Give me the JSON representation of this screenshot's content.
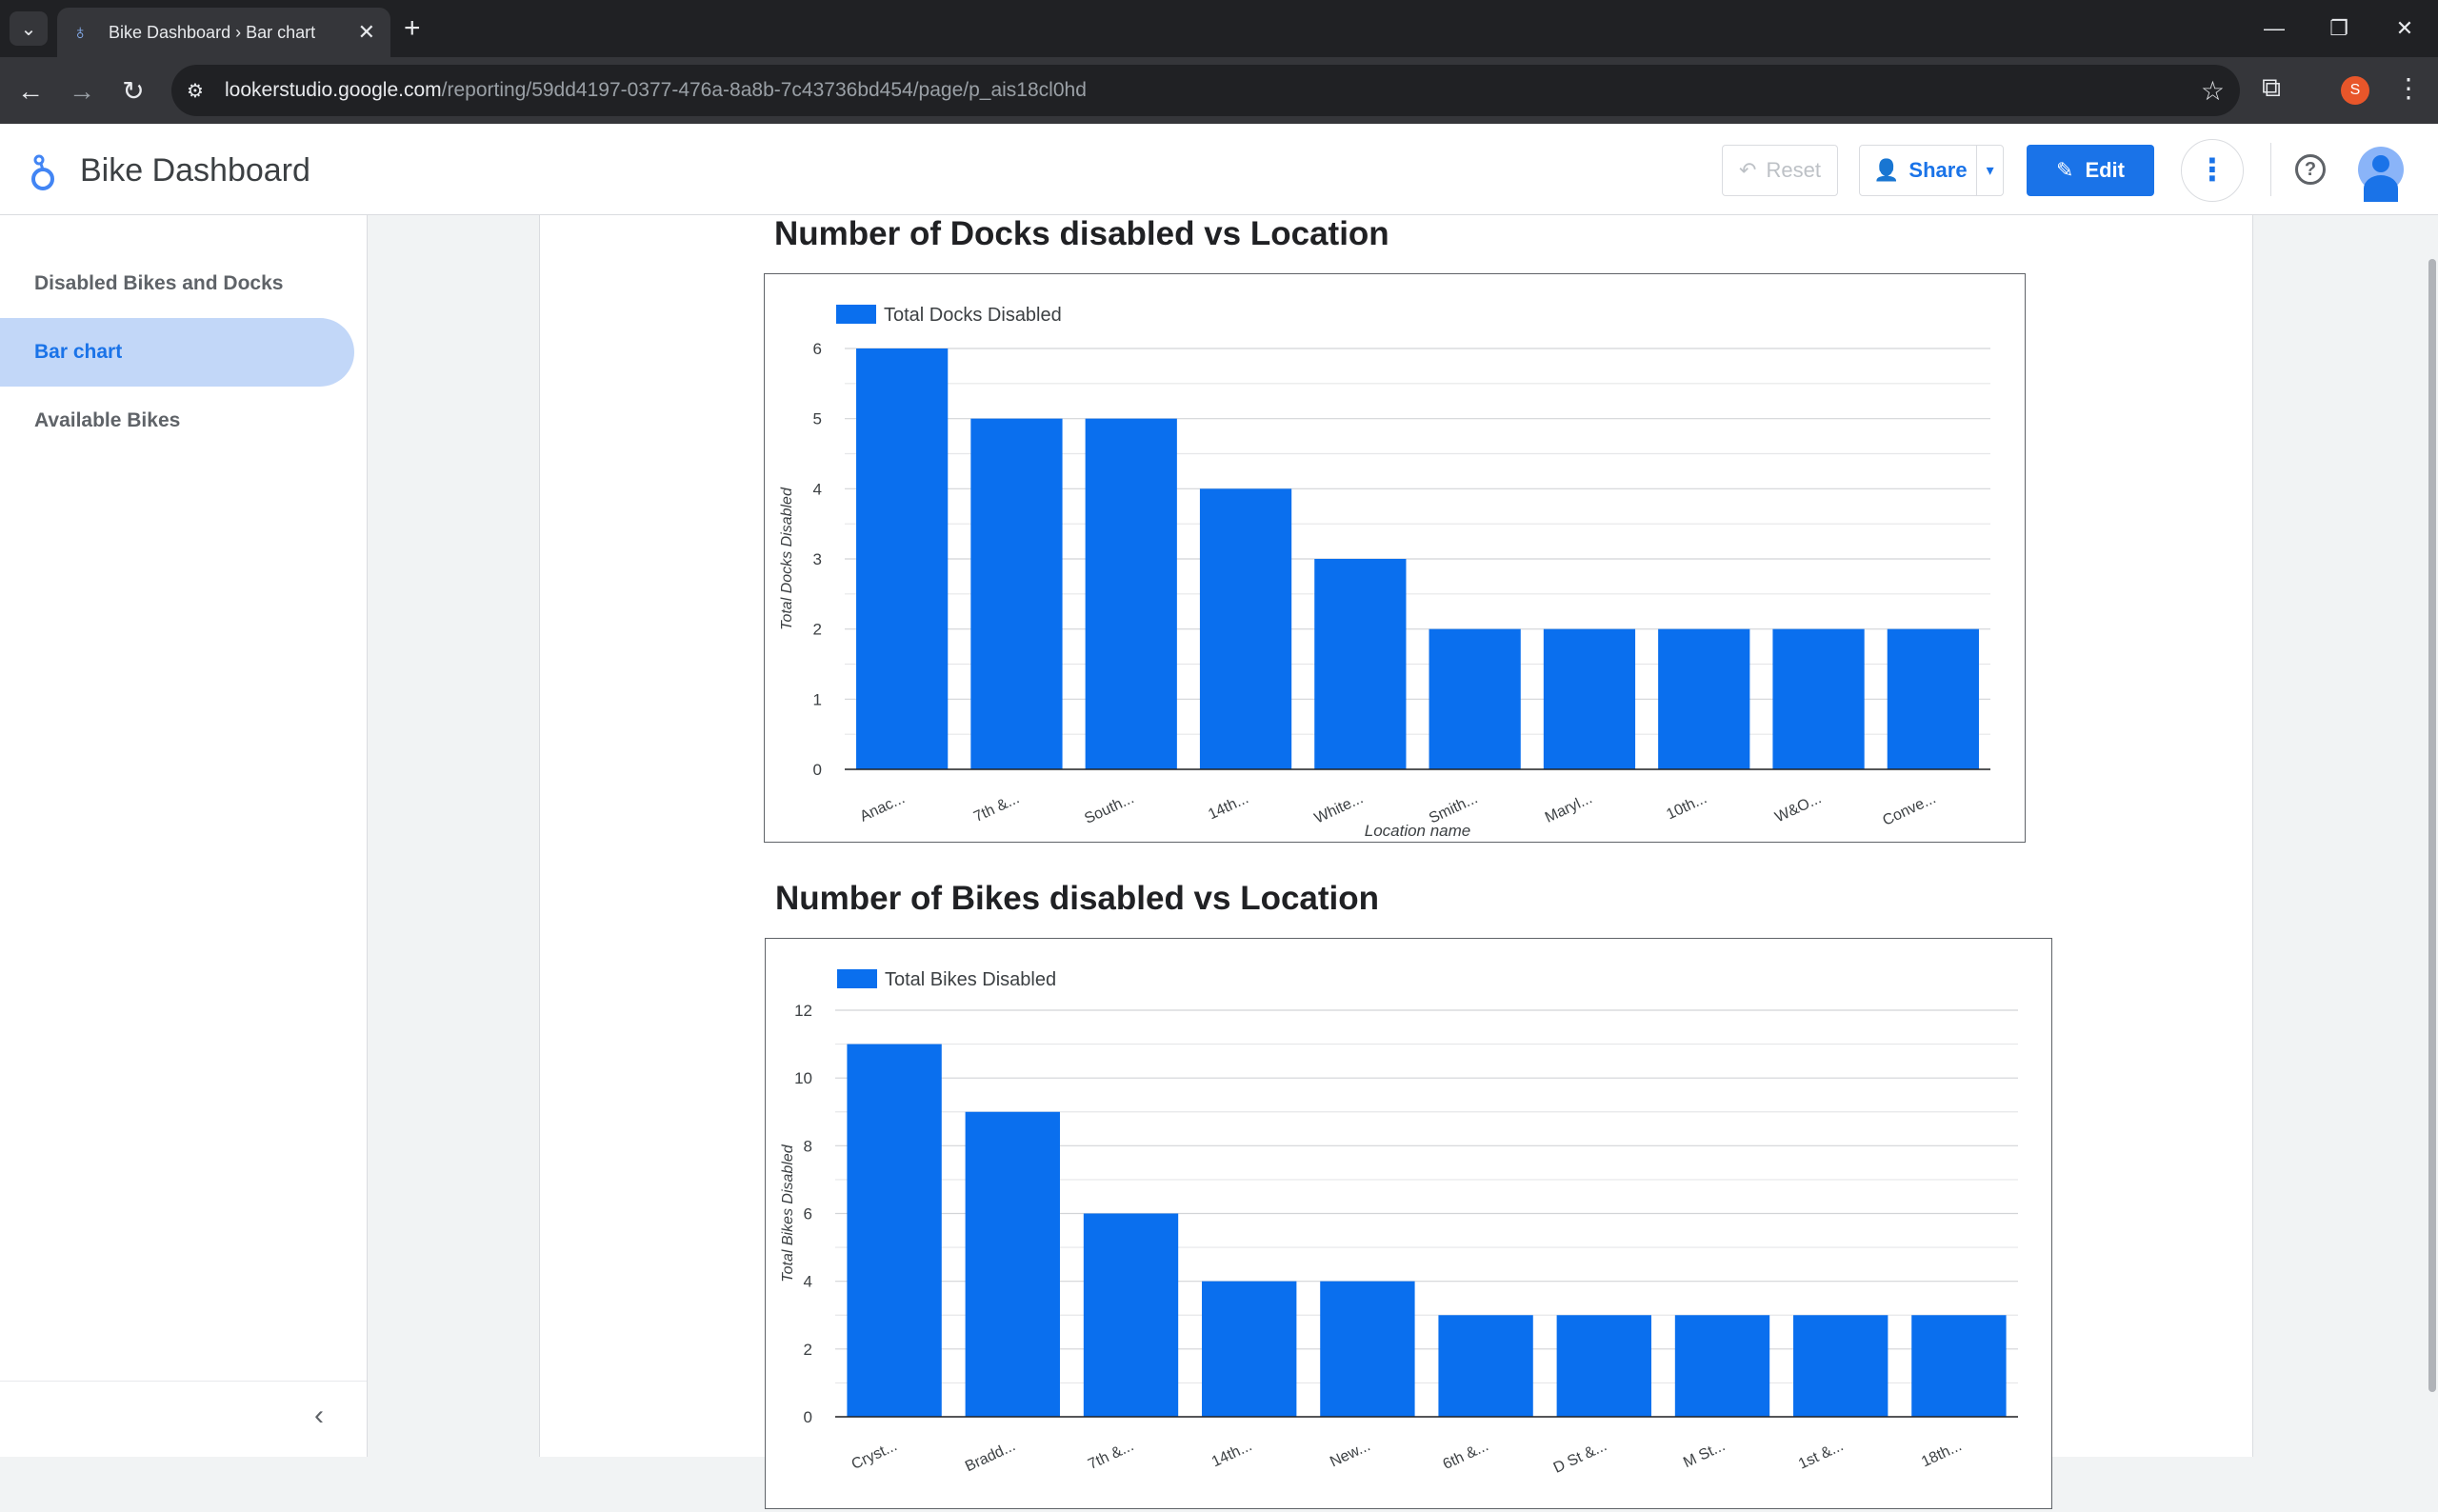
{
  "browser": {
    "tab_title": "Bike Dashboard › Bar chart",
    "url_host": "lookerstudio.google.com",
    "url_path": "/reporting/59dd4197-0377-476a-8a8b-7c43736bd454/page/p_ais18cl0hd",
    "profile_initial": "S"
  },
  "header": {
    "title": "Bike Dashboard",
    "reset_label": "Reset",
    "share_label": "Share",
    "edit_label": "Edit"
  },
  "sidebar": {
    "items": [
      {
        "label": "Disabled Bikes and Docks",
        "active": false
      },
      {
        "label": "Bar chart",
        "active": true
      },
      {
        "label": "Available Bikes",
        "active": false
      }
    ]
  },
  "charts": {
    "docks_title": "Number of Docks disabled vs Location",
    "bikes_title": "Number of Bikes disabled vs Location"
  },
  "colors": {
    "bar": "#0a6fee",
    "accent": "#1a73e8"
  },
  "chart_data": [
    {
      "type": "bar",
      "title": "Number of Docks disabled vs Location",
      "legend": "Total Docks Disabled",
      "xlabel": "Location name",
      "ylabel": "Total Docks Disabled",
      "categories": [
        "Anac...",
        "7th &...",
        "South...",
        "14th...",
        "White...",
        "Smith...",
        "Maryl...",
        "10th...",
        "W&O...",
        "Conve..."
      ],
      "values": [
        6,
        5,
        5,
        4,
        3,
        2,
        2,
        2,
        2,
        2
      ],
      "ylim": [
        0,
        6
      ],
      "yticks": [
        0,
        1,
        2,
        3,
        4,
        5,
        6
      ],
      "grid": true,
      "legend_position": "top-left"
    },
    {
      "type": "bar",
      "title": "Number of Bikes disabled vs Location",
      "legend": "Total Bikes Disabled",
      "xlabel": "",
      "ylabel": "Total Bikes Disabled",
      "categories": [
        "Cryst...",
        "Bradd...",
        "7th &...",
        "14th...",
        "New...",
        "6th &...",
        "D St &...",
        "M St...",
        "1st &...",
        "18th..."
      ],
      "values": [
        11,
        9,
        6,
        4,
        4,
        3,
        3,
        3,
        3,
        3
      ],
      "ylim": [
        0,
        12
      ],
      "yticks": [
        0,
        2,
        4,
        6,
        8,
        10,
        12
      ],
      "grid": true,
      "legend_position": "top-left"
    }
  ]
}
